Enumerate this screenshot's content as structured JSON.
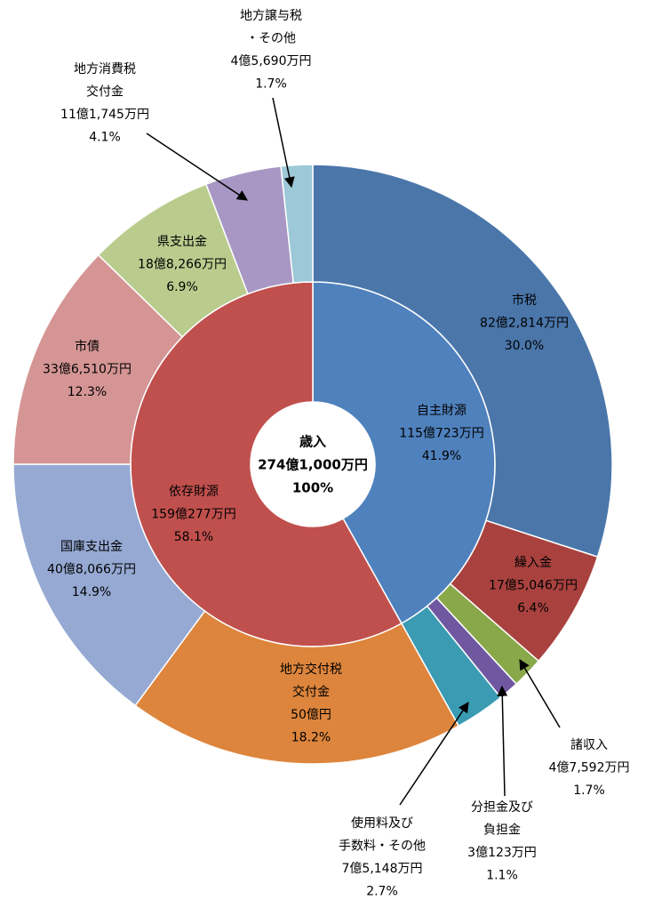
{
  "chart_data": {
    "type": "donut",
    "center_label": [
      "歳入",
      "274億1,000万円",
      "100%"
    ],
    "rings": [
      {
        "categories": [
          [
            "自主財源"
          ],
          [
            "依存財源"
          ]
        ],
        "amounts": [
          "115億723万円",
          "159億277万円"
        ],
        "values": [
          41.9,
          58.1
        ],
        "value_labels": [
          "41.9%",
          "58.1%"
        ],
        "colors": [
          "#4f81bd",
          "#c0504d"
        ]
      },
      {
        "categories": [
          [
            "市税"
          ],
          [
            "繰入金"
          ],
          [
            "諸収入"
          ],
          [
            "分担金及び",
            "負担金"
          ],
          [
            "使用料及び",
            "手数料・その他"
          ],
          [
            "地方交付税",
            "交付金"
          ],
          [
            "国庫支出金"
          ],
          [
            "市債"
          ],
          [
            "県支出金"
          ],
          [
            "地方消費税",
            "交付金"
          ],
          [
            "地方譲与税",
            "・その他"
          ]
        ],
        "amounts": [
          "82億2,814万円",
          "17億5,046万円",
          "4億7,592万円",
          "3億123万円",
          "7億5,148万円",
          "50億円",
          "40億8,066万円",
          "33億6,510万円",
          "18億8,266万円",
          "11億1,745万円",
          "4億5,690万円"
        ],
        "values": [
          30.0,
          6.4,
          1.7,
          1.1,
          2.7,
          18.2,
          14.9,
          12.3,
          6.9,
          4.1,
          1.7
        ],
        "value_labels": [
          "30.0%",
          "6.4%",
          "1.7%",
          "1.1%",
          "2.7%",
          "18.2%",
          "14.9%",
          "12.3%",
          "6.9%",
          "4.1%",
          "1.7%"
        ],
        "colors": [
          "#4a76aa",
          "#a9423f",
          "#88a84a",
          "#6f58a0",
          "#3a9bb2",
          "#dd853d",
          "#95a9d3",
          "#d49594",
          "#b9cc8d",
          "#a897c4",
          "#9cc8d7"
        ]
      }
    ]
  }
}
